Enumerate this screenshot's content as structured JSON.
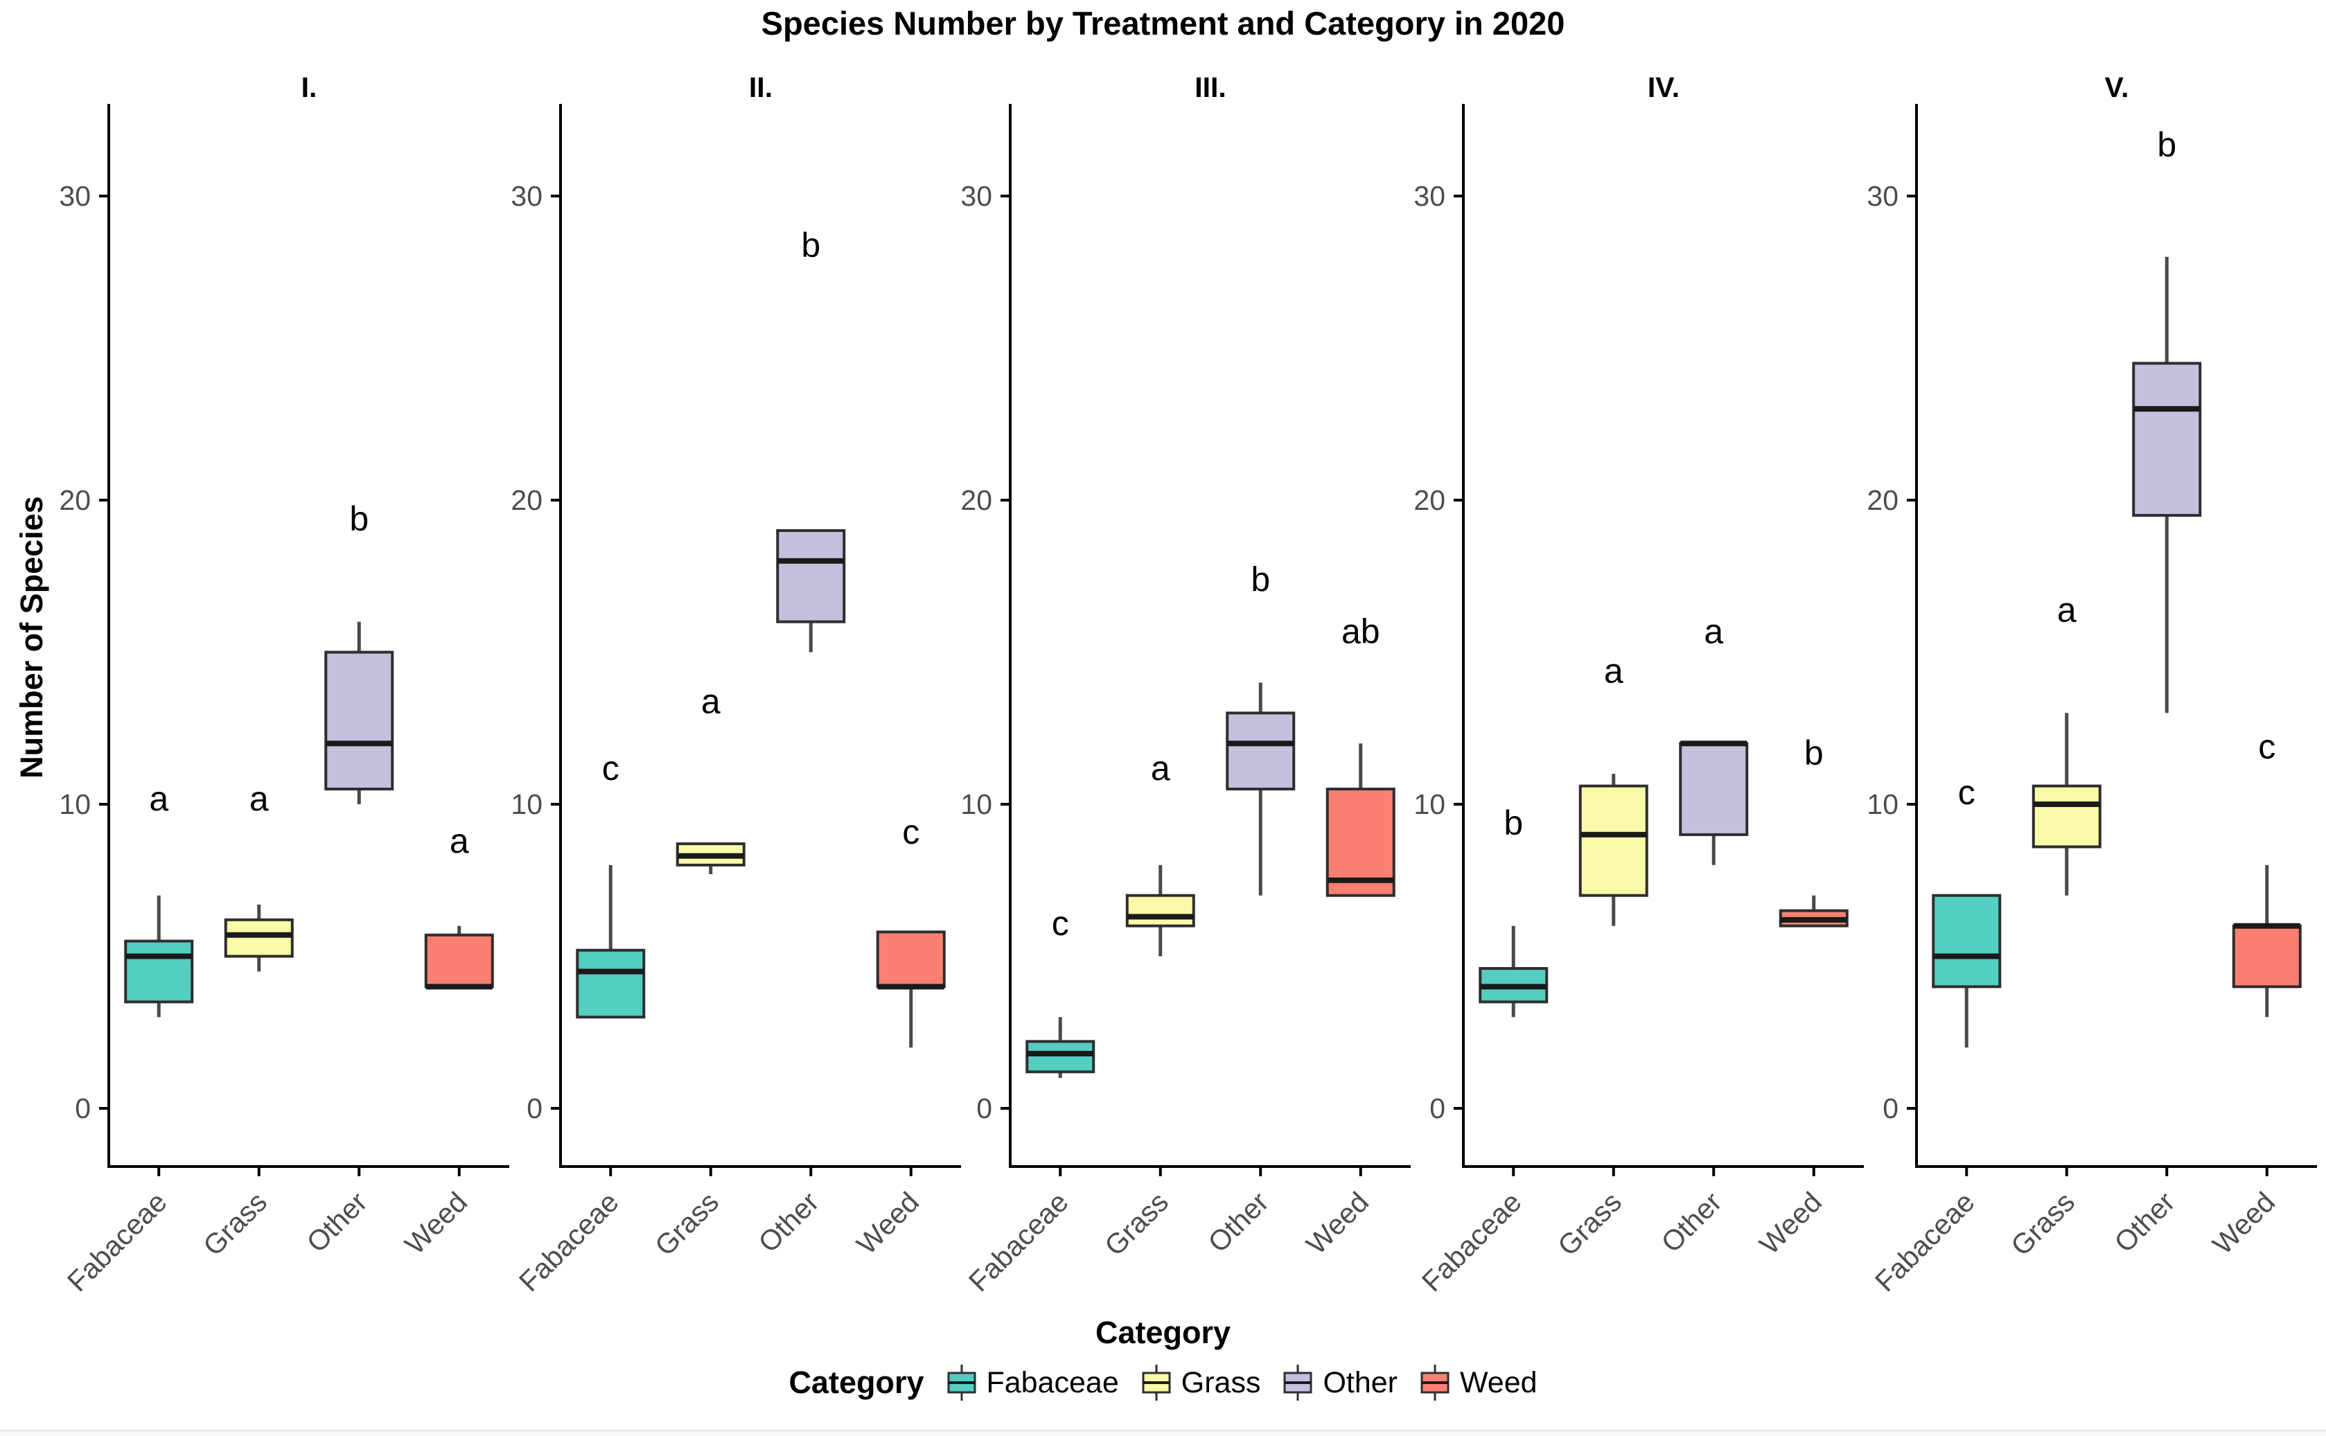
{
  "chart_data": {
    "type": "boxplot",
    "title": "Species Number by Treatment and Category in 2020",
    "xlabel": "Category",
    "ylabel": "Number of Species",
    "legend_title": "Category",
    "categories": [
      "Fabaceae",
      "Grass",
      "Other",
      "Weed"
    ],
    "yticks": [
      0,
      10,
      20,
      30
    ],
    "ylim": [
      -2,
      33
    ],
    "grid": "off",
    "legend_position": "bottom",
    "palette": {
      "Fabaceae": "#54CEC1",
      "Grass": "#FAFAA8",
      "Other": "#C4C0DD",
      "Weed": "#FB8072"
    },
    "style_colors": {
      "box_border": "#2e2e2e",
      "median": "#1a1a1a",
      "whisker": "#4a4a4a",
      "axis_line": "#000000",
      "tick_label": "#4d4d4d",
      "sig_letter": "#000000"
    },
    "facets": [
      {
        "label": "I.",
        "boxes": [
          {
            "category": "Fabaceae",
            "whisker_low": 3,
            "q1": 3.5,
            "median": 5,
            "q3": 5.5,
            "whisker_high": 7,
            "sig_letter": "a",
            "letter_y": 9.8
          },
          {
            "category": "Grass",
            "whisker_low": 4.5,
            "q1": 5,
            "median": 5.7,
            "q3": 6.2,
            "whisker_high": 6.7,
            "sig_letter": "a",
            "letter_y": 9.8
          },
          {
            "category": "Other",
            "whisker_low": 10,
            "q1": 10.5,
            "median": 12,
            "q3": 15,
            "whisker_high": 16,
            "sig_letter": "b",
            "letter_y": 19
          },
          {
            "category": "Weed",
            "whisker_low": 4,
            "q1": 4,
            "median": 4,
            "q3": 5.7,
            "whisker_high": 6,
            "sig_letter": "a",
            "letter_y": 8.4
          }
        ]
      },
      {
        "label": "II.",
        "boxes": [
          {
            "category": "Fabaceae",
            "whisker_low": 3,
            "q1": 3,
            "median": 4.5,
            "q3": 5.2,
            "whisker_high": 8,
            "sig_letter": "c",
            "letter_y": 10.8
          },
          {
            "category": "Grass",
            "whisker_low": 7.7,
            "q1": 8,
            "median": 8.3,
            "q3": 8.7,
            "whisker_high": 8.7,
            "sig_letter": "a",
            "letter_y": 13
          },
          {
            "category": "Other",
            "whisker_low": 15,
            "q1": 16,
            "median": 18,
            "q3": 19,
            "whisker_high": 19,
            "sig_letter": "b",
            "letter_y": 28
          },
          {
            "category": "Weed",
            "whisker_low": 2,
            "q1": 4,
            "median": 4,
            "q3": 5.8,
            "whisker_high": 5.8,
            "sig_letter": "c",
            "letter_y": 8.7
          }
        ]
      },
      {
        "label": "III.",
        "boxes": [
          {
            "category": "Fabaceae",
            "whisker_low": 1,
            "q1": 1.2,
            "median": 1.8,
            "q3": 2.2,
            "whisker_high": 3,
            "sig_letter": "c",
            "letter_y": 5.7
          },
          {
            "category": "Grass",
            "whisker_low": 5,
            "q1": 6,
            "median": 6.3,
            "q3": 7,
            "whisker_high": 8,
            "sig_letter": "a",
            "letter_y": 10.8
          },
          {
            "category": "Other",
            "whisker_low": 7,
            "q1": 10.5,
            "median": 12,
            "q3": 13,
            "whisker_high": 14,
            "sig_letter": "b",
            "letter_y": 17
          },
          {
            "category": "Weed",
            "whisker_low": 7,
            "q1": 7,
            "median": 7.5,
            "q3": 10.5,
            "whisker_high": 12,
            "sig_letter": "ab",
            "letter_y": 15.3
          }
        ]
      },
      {
        "label": "IV.",
        "boxes": [
          {
            "category": "Fabaceae",
            "whisker_low": 3,
            "q1": 3.5,
            "median": 4,
            "q3": 4.6,
            "whisker_high": 6,
            "sig_letter": "b",
            "letter_y": 9
          },
          {
            "category": "Grass",
            "whisker_low": 6,
            "q1": 7,
            "median": 9,
            "q3": 10.6,
            "whisker_high": 11,
            "sig_letter": "a",
            "letter_y": 14
          },
          {
            "category": "Other",
            "whisker_low": 8,
            "q1": 9,
            "median": 12,
            "q3": 12,
            "whisker_high": 12,
            "sig_letter": "a",
            "letter_y": 15.3
          },
          {
            "category": "Weed",
            "whisker_low": 6,
            "q1": 6,
            "median": 6.2,
            "q3": 6.5,
            "whisker_high": 7,
            "sig_letter": "b",
            "letter_y": 11.3
          }
        ]
      },
      {
        "label": "V.",
        "boxes": [
          {
            "category": "Fabaceae",
            "whisker_low": 2,
            "q1": 4,
            "median": 5,
            "q3": 7,
            "whisker_high": 7,
            "sig_letter": "c",
            "letter_y": 10
          },
          {
            "category": "Grass",
            "whisker_low": 7,
            "q1": 8.6,
            "median": 10,
            "q3": 10.6,
            "whisker_high": 13,
            "sig_letter": "a",
            "letter_y": 16
          },
          {
            "category": "Other",
            "whisker_low": 13,
            "q1": 19.5,
            "median": 23,
            "q3": 24.5,
            "whisker_high": 28,
            "sig_letter": "b",
            "letter_y": 31.3
          },
          {
            "category": "Weed",
            "whisker_low": 3,
            "q1": 4,
            "median": 6,
            "q3": 6,
            "whisker_high": 8,
            "sig_letter": "c",
            "letter_y": 11.5
          }
        ]
      }
    ],
    "legend_items": [
      {
        "label": "Fabaceae",
        "color": "#54CEC1"
      },
      {
        "label": "Grass",
        "color": "#FAFAA8"
      },
      {
        "label": "Other",
        "color": "#C4C0DD"
      },
      {
        "label": "Weed",
        "color": "#FB8072"
      }
    ]
  }
}
